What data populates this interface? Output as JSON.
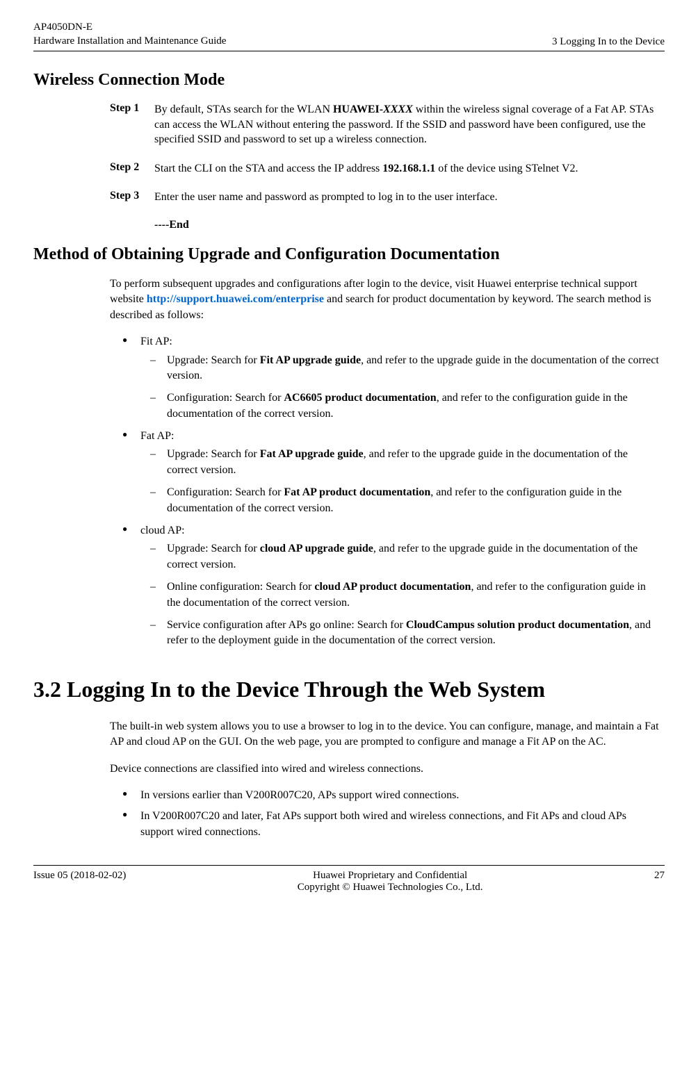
{
  "header": {
    "product": "AP4050DN-E",
    "guide": "Hardware Installation and Maintenance Guide",
    "section": "3 Logging In to the Device"
  },
  "section1": {
    "title": "Wireless Connection Mode",
    "steps": {
      "s1_label": "Step 1",
      "s1_prefix": "By default, STAs search for the WLAN ",
      "s1_bold1": "HUAWEI-",
      "s1_italic": "XXXX",
      "s1_suffix": " within the wireless signal coverage of a Fat AP. STAs can access the WLAN without entering the password. If the SSID and password have been configured, use the specified SSID and password to set up a wireless connection.",
      "s2_label": "Step 2",
      "s2_prefix": "Start the CLI on the STA and access the IP address ",
      "s2_bold": "192.168.1.1",
      "s2_suffix": " of the device using STelnet V2.",
      "s3_label": "Step 3",
      "s3_text": "Enter the user name and password as prompted to log in to the user interface.",
      "end": "----End"
    }
  },
  "section2": {
    "title": "Method of Obtaining Upgrade and Configuration Documentation",
    "intro_prefix": "To perform subsequent upgrades and configurations after login to the device, visit Huawei enterprise technical support website ",
    "intro_link": "http://support.huawei.com/enterprise",
    "intro_suffix": " and search for product documentation by keyword. The search method is described as follows:",
    "fit_ap": {
      "label": "Fit AP:",
      "up_prefix": "Upgrade: Search for ",
      "up_bold": "Fit AP upgrade guide",
      "up_suffix": ", and refer to the upgrade guide in the documentation of the correct version.",
      "cfg_prefix": "Configuration: Search for ",
      "cfg_bold": "AC6605 product documentation",
      "cfg_suffix": ", and refer to the configuration guide in the documentation of the correct version."
    },
    "fat_ap": {
      "label": "Fat AP:",
      "up_prefix": "Upgrade: Search for ",
      "up_bold": "Fat AP upgrade guide",
      "up_suffix": ", and refer to the upgrade guide in the documentation of the correct version.",
      "cfg_prefix": "Configuration: Search for ",
      "cfg_bold": "Fat AP product documentation",
      "cfg_suffix": ", and refer to the configuration guide in the documentation of the correct version."
    },
    "cloud_ap": {
      "label": "cloud AP:",
      "up_prefix": "Upgrade: Search for ",
      "up_bold": "cloud AP upgrade guide",
      "up_suffix": ", and refer to the upgrade guide in the documentation of the correct version.",
      "online_prefix": "Online configuration: Search for ",
      "online_bold": "cloud AP product documentation",
      "online_suffix": ", and refer to the configuration guide in the documentation of the correct version.",
      "svc_prefix": "Service configuration after APs go online: Search for ",
      "svc_bold": "CloudCampus solution product documentation",
      "svc_suffix": ", and refer to the deployment guide in the documentation of the correct version."
    }
  },
  "section3": {
    "title": "3.2 Logging In to the Device Through the Web System",
    "p1": "The built-in web system allows you to use a browser to log in to the device. You can configure, manage, and maintain a Fat AP and cloud AP on the GUI. On the web page, you are prompted to configure and manage a Fit AP on the AC.",
    "p2": "Device connections are classified into wired and wireless connections.",
    "b1": "In versions earlier than V200R007C20, APs support wired connections.",
    "b2": "In V200R007C20 and later, Fat APs support both wired and wireless connections, and Fit APs and cloud APs support wired connections."
  },
  "footer": {
    "issue": "Issue 05 (2018-02-02)",
    "conf": "Huawei Proprietary and Confidential",
    "copy": "Copyright © Huawei Technologies Co., Ltd.",
    "page": "27"
  }
}
